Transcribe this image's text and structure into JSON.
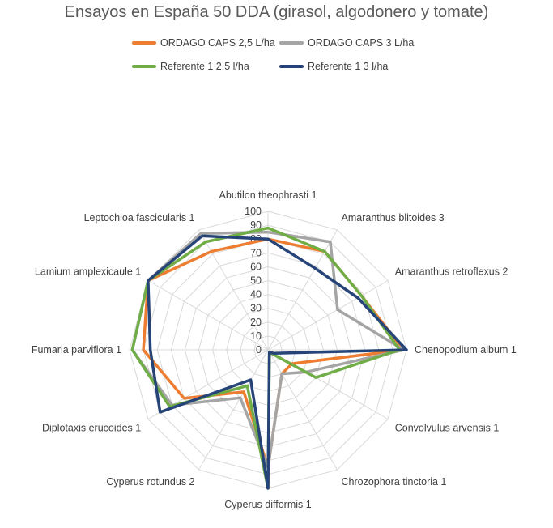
{
  "chart_data": {
    "type": "radar",
    "title": "Ensayos en España 50 DDA (girasol, algodonero y tomate)",
    "categories": [
      "Abutilon theophrasti 1",
      "Amaranthus blitoides 3",
      "Amaranthus retroflexus 2",
      "Chenopodium album 1",
      "Convolvulus arvensis 1",
      "Chrozophora tinctoria 1",
      "Cyperus difformis 1",
      "Cyperus rotundus 2",
      "Diplotaxis erucoides 1",
      "Fumaria parviflora 1",
      "Lamium amplexicaule 1",
      "Leptochloa fascicularis 1"
    ],
    "ticks": [
      "0",
      "10",
      "20",
      "30",
      "40",
      "50",
      "60",
      "70",
      "80",
      "90",
      "100"
    ],
    "rmax": 100,
    "grid": true,
    "legend_position": "top",
    "series": [
      {
        "name": "ORDAGO CAPS 2,5 L/ha",
        "color": "#ED7D31",
        "values": [
          80,
          82,
          78,
          98,
          20,
          20,
          85,
          35,
          70,
          90,
          100,
          82
        ]
      },
      {
        "name": "ORDAGO CAPS 3 L/ha",
        "color": "#A5A5A5",
        "values": [
          85,
          90,
          58,
          98,
          32,
          20,
          85,
          40,
          80,
          98,
          100,
          97
        ]
      },
      {
        "name": "Referente 1 2,5 l/ha",
        "color": "#70AD47",
        "values": [
          88,
          82,
          78,
          95,
          40,
          2,
          100,
          30,
          82,
          98,
          100,
          90
        ]
      },
      {
        "name": "Referente 1 3 l/ha",
        "color": "#264478",
        "values": [
          80,
          68,
          75,
          100,
          5,
          2,
          100,
          25,
          90,
          85,
          100,
          95
        ]
      }
    ]
  }
}
